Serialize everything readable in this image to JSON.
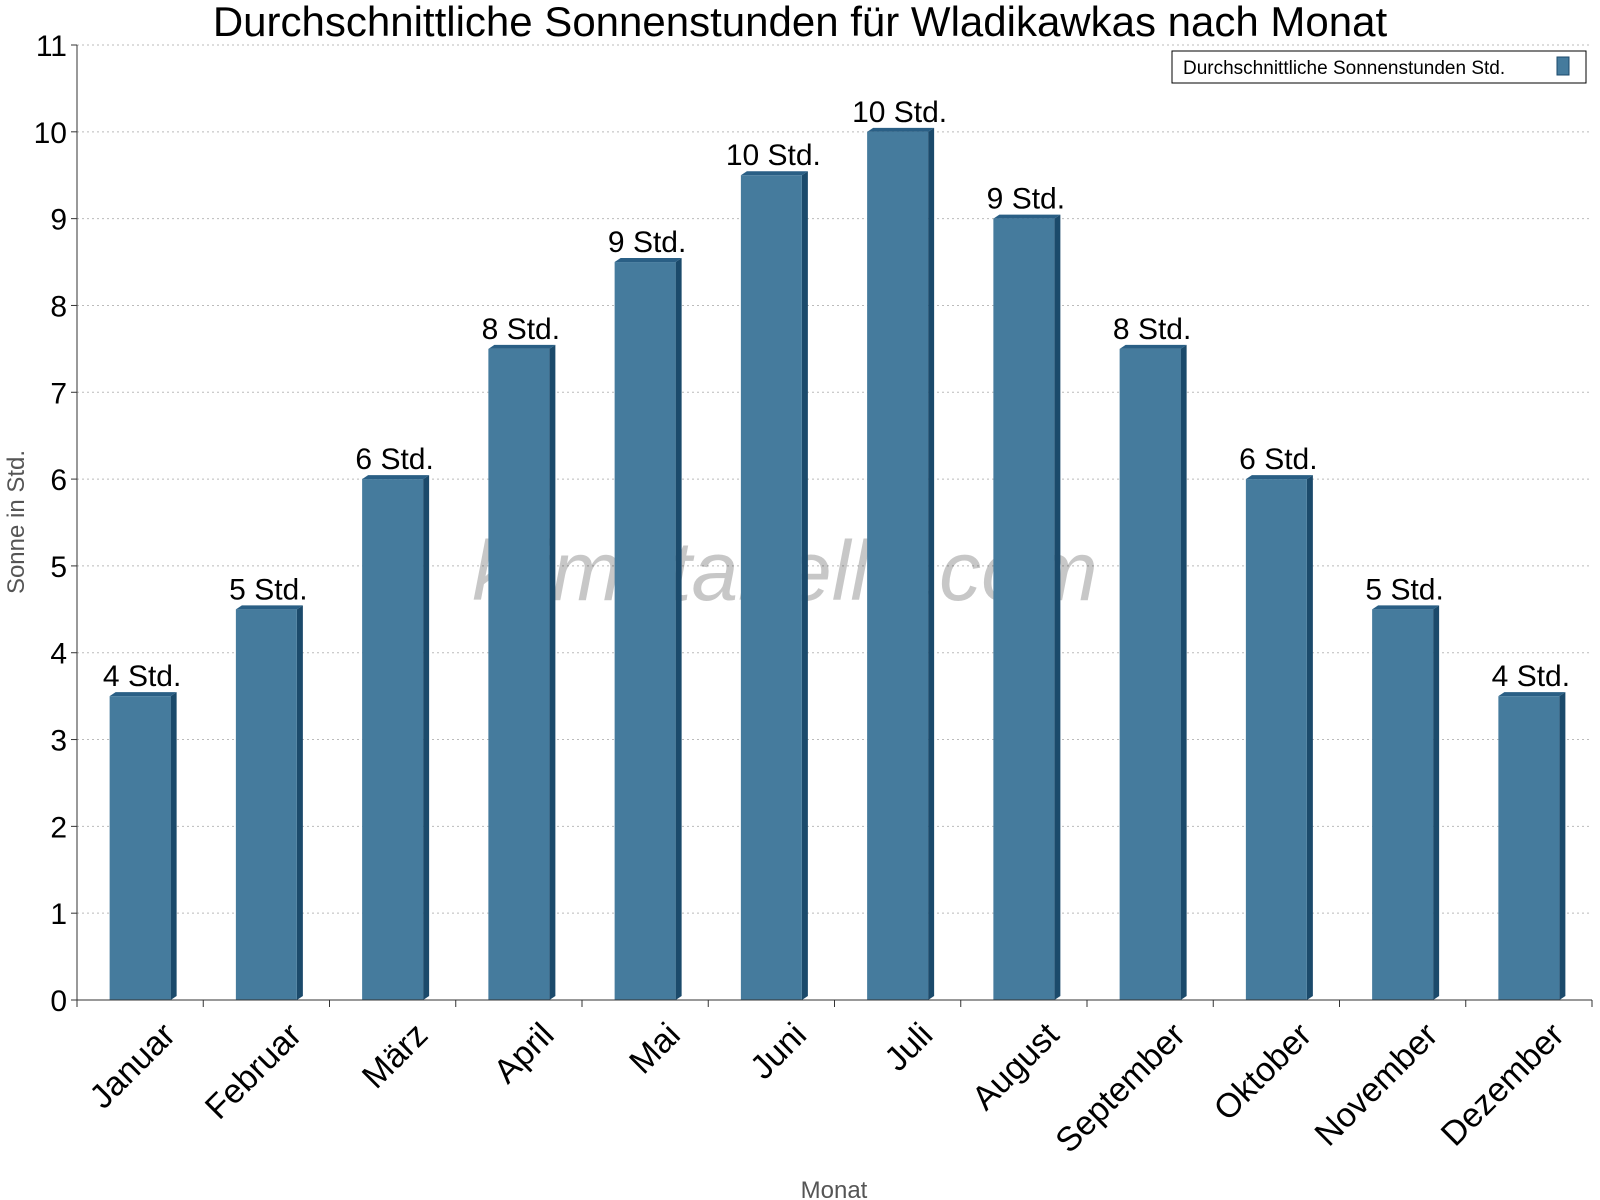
{
  "colors": {
    "bar_face": "#457b9d",
    "bar_side": "#1b4a6b",
    "bar_top": "#2a5f85",
    "grid": "#bbbbbb",
    "axis": "#333333"
  },
  "watermark": "klimatabelle.com",
  "chart_data": {
    "type": "bar",
    "title": "Durchschnittliche Sonnenstunden für Wladikawkas nach Monat",
    "xlabel": "Monat",
    "ylabel": "Sonne in Std.",
    "ylim": [
      0,
      11
    ],
    "yticks": [
      "0",
      "1",
      "2",
      "3",
      "4",
      "5",
      "6",
      "7",
      "8",
      "9",
      "10",
      "11"
    ],
    "grid": true,
    "legend_position": "top-right",
    "categories": [
      "Januar",
      "Februar",
      "März",
      "April",
      "Mai",
      "Juni",
      "Juli",
      "August",
      "September",
      "Oktober",
      "November",
      "Dezember"
    ],
    "series": [
      {
        "name": "Durchschnittliche Sonnenstunden Std.",
        "values": [
          3.5,
          4.5,
          6,
          7.5,
          8.5,
          9.5,
          10,
          9,
          7.5,
          6,
          4.5,
          3.5
        ],
        "labels": [
          "4 Std.",
          "5 Std.",
          "6 Std.",
          "8 Std.",
          "9 Std.",
          "10 Std.",
          "10 Std.",
          "9 Std.",
          "8 Std.",
          "6 Std.",
          "5 Std.",
          "4 Std."
        ]
      }
    ]
  }
}
